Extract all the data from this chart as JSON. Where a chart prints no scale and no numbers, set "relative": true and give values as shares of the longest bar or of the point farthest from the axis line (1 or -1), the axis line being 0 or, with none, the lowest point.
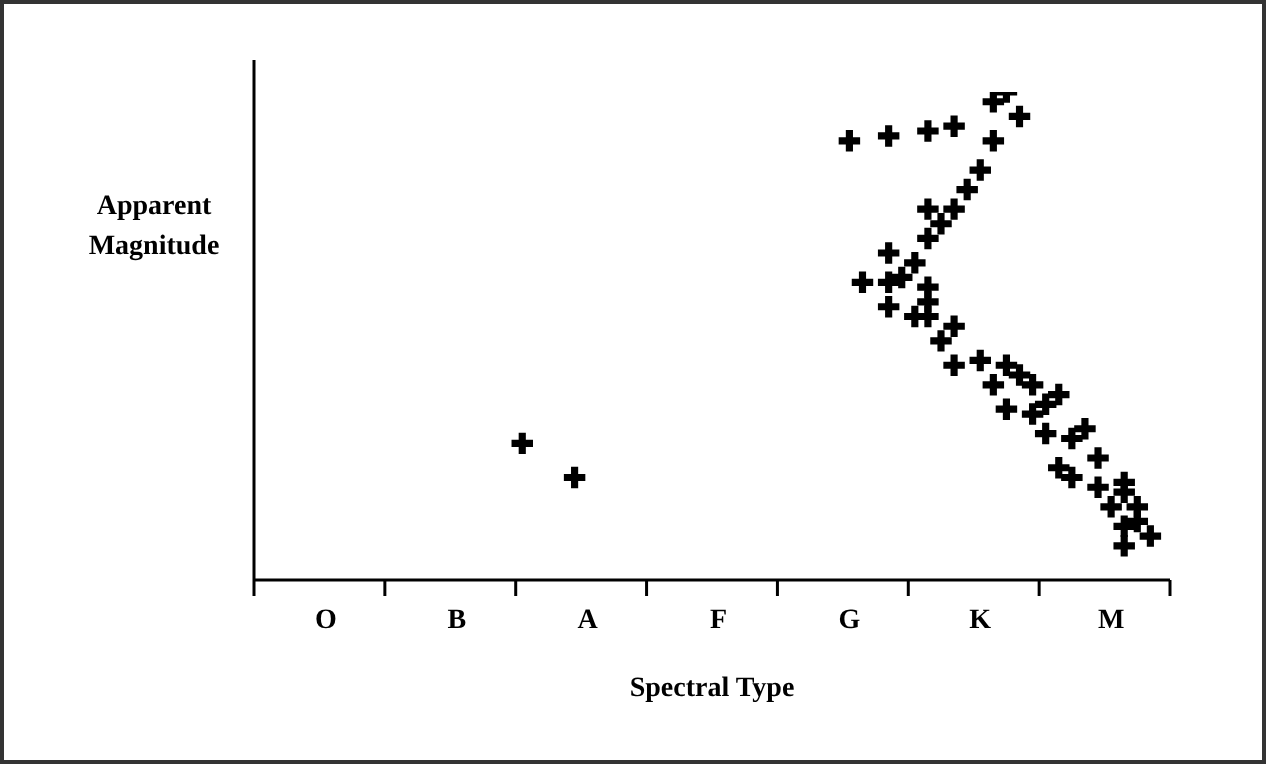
{
  "chart_data": {
    "type": "scatter",
    "xlabel": "Spectral Type",
    "ylabel": "Apparent Magnitude",
    "relative": true,
    "marker": "cross",
    "categories": [
      null,
      null,
      null,
      null,
      null,
      "O",
      null,
      null,
      null,
      null,
      null,
      null,
      null,
      null,
      null,
      "B",
      null,
      null,
      null,
      null,
      null,
      null,
      null,
      null,
      null,
      "A",
      null,
      null,
      null,
      null,
      null,
      null,
      null,
      null,
      null,
      "F",
      null,
      null,
      null,
      null,
      null,
      null,
      null,
      null,
      null,
      "G",
      null,
      null,
      null,
      null,
      null,
      null,
      null,
      null,
      null,
      "K",
      null,
      null,
      null,
      null,
      null,
      null,
      null,
      null,
      null,
      "M",
      null,
      null,
      null,
      null
    ],
    "series": [
      {
        "color": "#000000",
        "values": [
          null,
          null,
          null,
          null,
          null,
          null,
          null,
          null,
          null,
          null,
          null,
          null,
          null,
          null,
          null,
          null,
          null,
          null,
          null,
          null,
          0.28,
          null,
          null,
          null,
          0.21,
          null,
          null,
          null,
          null,
          null,
          null,
          null,
          null,
          null,
          null,
          null,
          null,
          null,
          null,
          null,
          null,
          null,
          null,
          null,
          null,
          0.9,
          0.61,
          null,
          0.91,
          0.62,
          0.65,
          0.92,
          0.73,
          0.93,
          0.8,
          0.84,
          0.98,
          1,
          0.95,
          0.4,
          0.36,
          0.38,
          0.29,
          0.31,
          0.25,
          0.15,
          0.2,
          0.15,
          0.09,
          null
        ]
      },
      {
        "color": "#000000",
        "values": [
          null,
          null,
          null,
          null,
          null,
          null,
          null,
          null,
          null,
          null,
          null,
          null,
          null,
          null,
          null,
          null,
          null,
          null,
          null,
          null,
          null,
          null,
          null,
          null,
          null,
          null,
          null,
          null,
          null,
          null,
          null,
          null,
          null,
          null,
          null,
          null,
          null,
          null,
          null,
          null,
          null,
          null,
          null,
          null,
          null,
          null,
          null,
          null,
          0.67,
          null,
          0.54,
          0.76,
          0.49,
          0.76,
          null,
          0.45,
          0.9,
          0.44,
          0.42,
          0.34,
          0.3,
          0.23,
          0.21,
          null,
          0.19,
          null,
          0.18,
          0.12,
          null,
          null
        ]
      },
      {
        "color": "#000000",
        "values": [
          null,
          null,
          null,
          null,
          null,
          null,
          null,
          null,
          null,
          null,
          null,
          null,
          null,
          null,
          null,
          null,
          null,
          null,
          null,
          null,
          null,
          null,
          null,
          null,
          null,
          null,
          null,
          null,
          null,
          null,
          null,
          null,
          null,
          null,
          null,
          null,
          null,
          null,
          null,
          null,
          null,
          null,
          null,
          null,
          null,
          null,
          null,
          null,
          0.61,
          null,
          null,
          0.7,
          null,
          0.52,
          null,
          null,
          0.4,
          0.35,
          null,
          null,
          null,
          null,
          null,
          null,
          null,
          null,
          0.11,
          null,
          null,
          null
        ]
      },
      {
        "color": "#000000",
        "values": [
          null,
          null,
          null,
          null,
          null,
          null,
          null,
          null,
          null,
          null,
          null,
          null,
          null,
          null,
          null,
          null,
          null,
          null,
          null,
          null,
          null,
          null,
          null,
          null,
          null,
          null,
          null,
          null,
          null,
          null,
          null,
          null,
          null,
          null,
          null,
          null,
          null,
          null,
          null,
          null,
          null,
          null,
          null,
          null,
          null,
          null,
          null,
          null,
          0.56,
          null,
          null,
          0.6,
          null,
          0.44,
          null,
          null,
          null,
          null,
          null,
          null,
          null,
          null,
          null,
          null,
          null,
          null,
          0.07,
          null,
          null,
          null
        ]
      },
      {
        "color": "#000000",
        "values": [
          null,
          null,
          null,
          null,
          null,
          null,
          null,
          null,
          null,
          null,
          null,
          null,
          null,
          null,
          null,
          null,
          null,
          null,
          null,
          null,
          null,
          null,
          null,
          null,
          null,
          null,
          null,
          null,
          null,
          null,
          null,
          null,
          null,
          null,
          null,
          null,
          null,
          null,
          null,
          null,
          null,
          null,
          null,
          null,
          null,
          null,
          null,
          null,
          null,
          null,
          null,
          0.57,
          null,
          null,
          null,
          null,
          null,
          null,
          null,
          null,
          null,
          null,
          null,
          null,
          null,
          null,
          null,
          null,
          null,
          null
        ]
      },
      {
        "color": "#000000",
        "values": [
          null,
          null,
          null,
          null,
          null,
          null,
          null,
          null,
          null,
          null,
          null,
          null,
          null,
          null,
          null,
          null,
          null,
          null,
          null,
          null,
          null,
          null,
          null,
          null,
          null,
          null,
          null,
          null,
          null,
          null,
          null,
          null,
          null,
          null,
          null,
          null,
          null,
          null,
          null,
          null,
          null,
          null,
          null,
          null,
          null,
          null,
          null,
          null,
          null,
          null,
          null,
          0.54,
          null,
          null,
          null,
          null,
          null,
          null,
          null,
          null,
          null,
          null,
          null,
          null,
          null,
          null,
          null,
          null,
          null,
          null
        ]
      }
    ]
  }
}
